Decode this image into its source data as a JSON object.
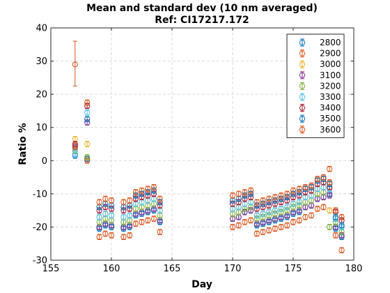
{
  "chart_data": {
    "type": "scatter",
    "title": "Mean and standard dev (10 nm averaged)",
    "subtitle": "Ref: CI17217.172",
    "xlabel": "Day",
    "ylabel": "Ratio %",
    "xlim": [
      155,
      180
    ],
    "ylim": [
      -30,
      40
    ],
    "xticks": [
      "155",
      "160",
      "165",
      "170",
      "175",
      "180"
    ],
    "yticks": [
      "-30",
      "-20",
      "-10",
      "0",
      "10",
      "20",
      "30",
      "40"
    ],
    "grid": true,
    "legend_position": "top-right",
    "x": [
      157,
      158,
      159,
      159.5,
      160,
      161,
      161.5,
      162,
      162.5,
      163,
      163.5,
      164,
      170,
      170.5,
      171,
      171.5,
      172,
      172.5,
      173,
      173.5,
      174,
      174.5,
      175,
      175.5,
      176,
      176.5,
      177,
      177.5,
      178,
      178.5,
      179
    ],
    "series": [
      {
        "name": "2800",
        "color": "#0072bd",
        "values": [
          1.5,
          0.5,
          -20.5,
          -19.5,
          -20,
          -20.5,
          -20,
          -16.5,
          -16,
          -15.5,
          -15,
          -18.5,
          -17.5,
          -17,
          -15.5,
          -15,
          -19.5,
          -19,
          -18.5,
          -18,
          -17.5,
          -17,
          -16,
          -15.5,
          -14,
          -13.5,
          -11.5,
          -11,
          -10,
          -20.5,
          -23
        ]
      },
      {
        "name": "2900",
        "color": "#d95319",
        "values": [
          29,
          0,
          -23,
          -22,
          -22.5,
          -23,
          -22.5,
          -19,
          -18.5,
          -18,
          -17.5,
          -21.5,
          -20,
          -19.5,
          -18.5,
          -18,
          -22,
          -21.5,
          -21,
          -20.5,
          -20,
          -19.5,
          -18.5,
          -18,
          -17,
          -16.5,
          -14.5,
          -14,
          -2.5,
          -22.5,
          -27
        ]
      },
      {
        "name": "3000",
        "color": "#edb120",
        "values": [
          6.5,
          5,
          -17,
          -16,
          -16.5,
          -17,
          -16.5,
          -13,
          -12.5,
          -12,
          -11.5,
          -15,
          -14.5,
          -14,
          -13,
          -12.5,
          -16.5,
          -16,
          -15.5,
          -15,
          -14.5,
          -14,
          -13,
          -12.5,
          -11,
          -10.5,
          -8.5,
          -8,
          -15,
          -17.5,
          -20
        ]
      },
      {
        "name": "3100",
        "color": "#7e2f8e",
        "values": [
          4,
          11.5,
          -20,
          -19,
          -19.5,
          -20,
          -19.5,
          -16,
          -15.5,
          -15,
          -14.5,
          -18,
          -17.5,
          -17,
          -15.5,
          -15,
          -19,
          -18.5,
          -18,
          -17.5,
          -17,
          -16.5,
          -15.5,
          -15,
          -14,
          -13.5,
          -11.5,
          -11,
          -10.5,
          -20,
          -22.5
        ]
      },
      {
        "name": "3200",
        "color": "#77ac30",
        "values": [
          3,
          1,
          -18.5,
          -17.5,
          -18,
          -18.5,
          -18,
          -14.5,
          -14,
          -13.5,
          -13,
          -16.5,
          -16,
          -15.5,
          -14.5,
          -14,
          -17.5,
          -17,
          -16.5,
          -16,
          -15.5,
          -15,
          -14,
          -13.5,
          -12.5,
          -12,
          -10,
          -9.5,
          -20,
          -18.5,
          -21.5
        ]
      },
      {
        "name": "3300",
        "color": "#4dbeee",
        "values": [
          2,
          14.5,
          -17,
          -16,
          -16.5,
          -17,
          -16.5,
          -13,
          -12.5,
          -12,
          -11.5,
          -15,
          -14.5,
          -14,
          -13,
          -12.5,
          -16.5,
          -16,
          -15.5,
          -15,
          -14.5,
          -14,
          -13,
          -12.5,
          -11,
          -10.5,
          -8.5,
          -8,
          -8.5,
          -17.5,
          -20
        ]
      },
      {
        "name": "3400",
        "color": "#a2142f",
        "values": [
          5,
          16.5,
          -15,
          -14,
          -14.5,
          -15,
          -14.5,
          -11.5,
          -11,
          -10.5,
          -10,
          -13.5,
          -13,
          -12.5,
          -11.5,
          -11,
          -14.5,
          -14,
          -13.5,
          -13,
          -12.5,
          -12,
          -11,
          -10.5,
          -9.5,
          -9,
          -7,
          -6.5,
          -8,
          -15.5,
          -18
        ]
      },
      {
        "name": "3500",
        "color": "#0072bd",
        "values": [
          4.5,
          12.5,
          -14,
          -13,
          -13.5,
          -14,
          -13.5,
          -10.5,
          -10,
          -9.5,
          -9,
          -12.5,
          -12,
          -11.5,
          -10.5,
          -10,
          -13.5,
          -13,
          -12.5,
          -12,
          -11.5,
          -11,
          -10,
          -9.5,
          -8.5,
          -8,
          -6,
          -5.5,
          -7,
          -17,
          -19.5
        ]
      },
      {
        "name": "3600",
        "color": "#d95319",
        "values": [
          4.5,
          17.5,
          -12.5,
          -11.5,
          -12,
          -12.5,
          -12,
          -9.5,
          -9,
          -8.5,
          -8,
          -11.5,
          -10.5,
          -10,
          -9.5,
          -9,
          -12.5,
          -12,
          -11.5,
          -11,
          -10.5,
          -10,
          -9,
          -8.5,
          -8,
          -7.5,
          -5.5,
          -5,
          -6.5,
          -15,
          -17
        ]
      }
    ],
    "errorbar_example": {
      "x": 157,
      "y": 29,
      "low": 22.5,
      "high": 36
    }
  }
}
